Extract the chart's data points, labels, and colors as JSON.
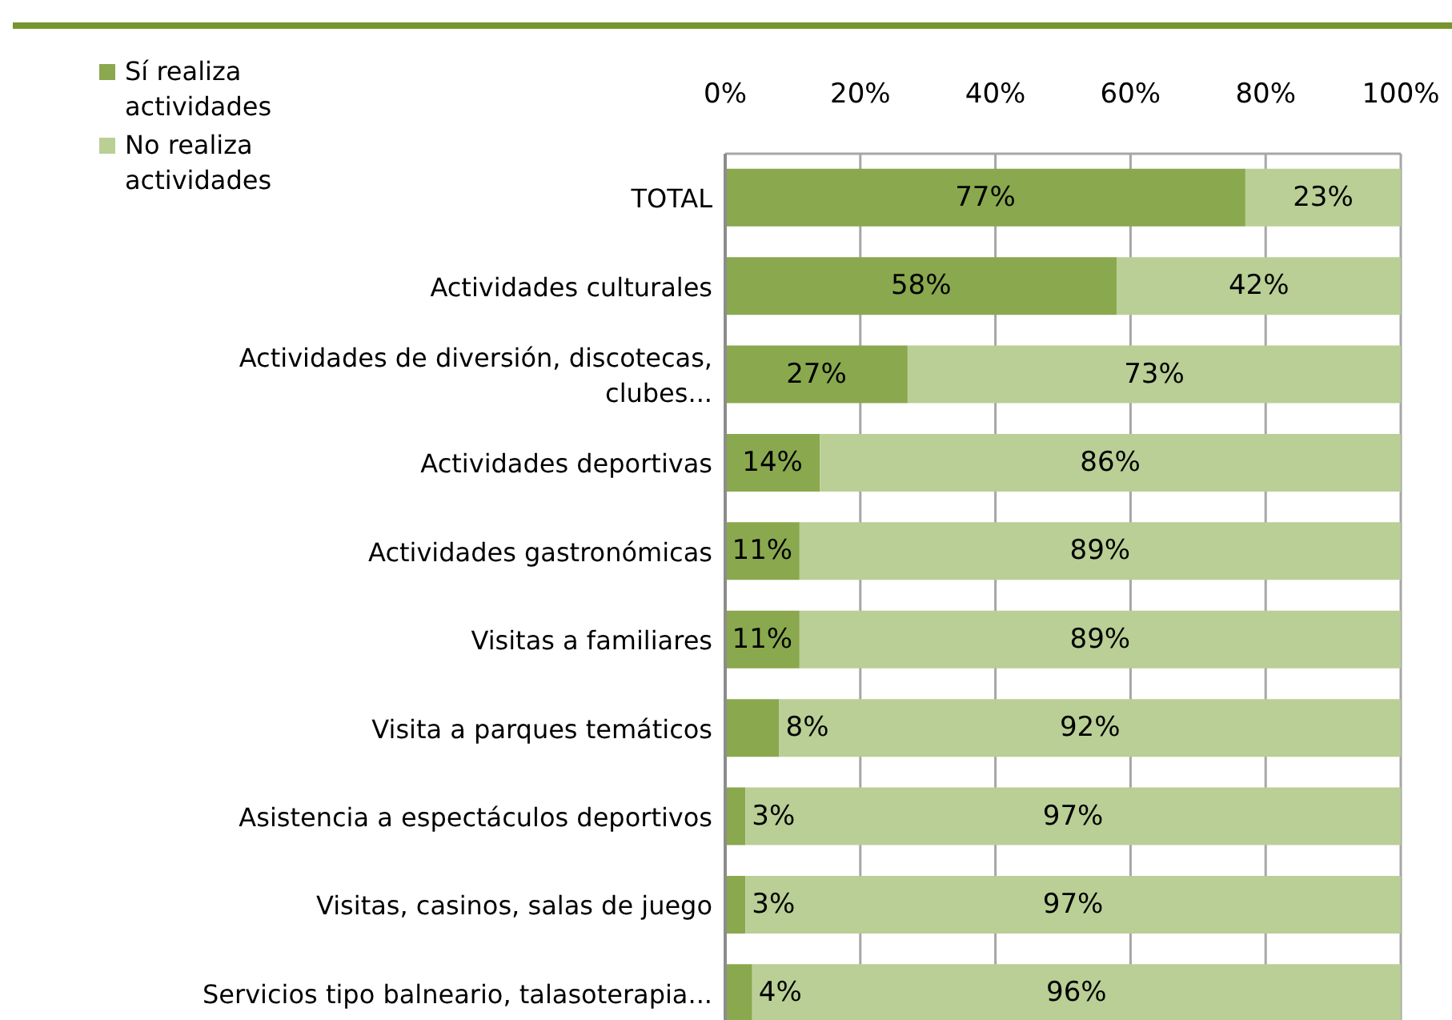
{
  "chart_data": {
    "type": "bar",
    "orientation": "horizontal",
    "stacked": true,
    "categories": [
      "TOTAL",
      "Actividades culturales",
      "Actividades de diversión, discotecas, clubes...",
      "Actividades deportivas",
      "Actividades gastronómicas",
      "Visitas a familiares",
      "Visita a parques temáticos",
      "Asistencia a espectáculos deportivos",
      "Visitas, casinos, salas de juego",
      "Servicios tipo balneario, talasoterapia..."
    ],
    "series": [
      {
        "name": "Sí realiza actividades",
        "color": "#8aa84e",
        "values": [
          77,
          58,
          27,
          14,
          11,
          11,
          8,
          3,
          3,
          4
        ],
        "value_labels": [
          "77%",
          "58%",
          "27%",
          "14%",
          "11%",
          "11%",
          "8%",
          "3%",
          "3%",
          "4%"
        ]
      },
      {
        "name": "No realiza actividades",
        "color": "#b9cf95",
        "values": [
          23,
          42,
          73,
          86,
          89,
          89,
          92,
          97,
          97,
          96
        ],
        "value_labels": [
          "23%",
          "42%",
          "73%",
          "86%",
          "89%",
          "89%",
          "92%",
          "97%",
          "97%",
          "96%"
        ]
      }
    ],
    "xlim": [
      0,
      100
    ],
    "xticks": [
      {
        "value": 0,
        "label": "0%"
      },
      {
        "value": 20,
        "label": "20%"
      },
      {
        "value": 40,
        "label": "40%"
      },
      {
        "value": 60,
        "label": "60%"
      },
      {
        "value": 80,
        "label": "80%"
      },
      {
        "value": 100,
        "label": "100%"
      }
    ],
    "grid": "x",
    "legend": "top left"
  }
}
